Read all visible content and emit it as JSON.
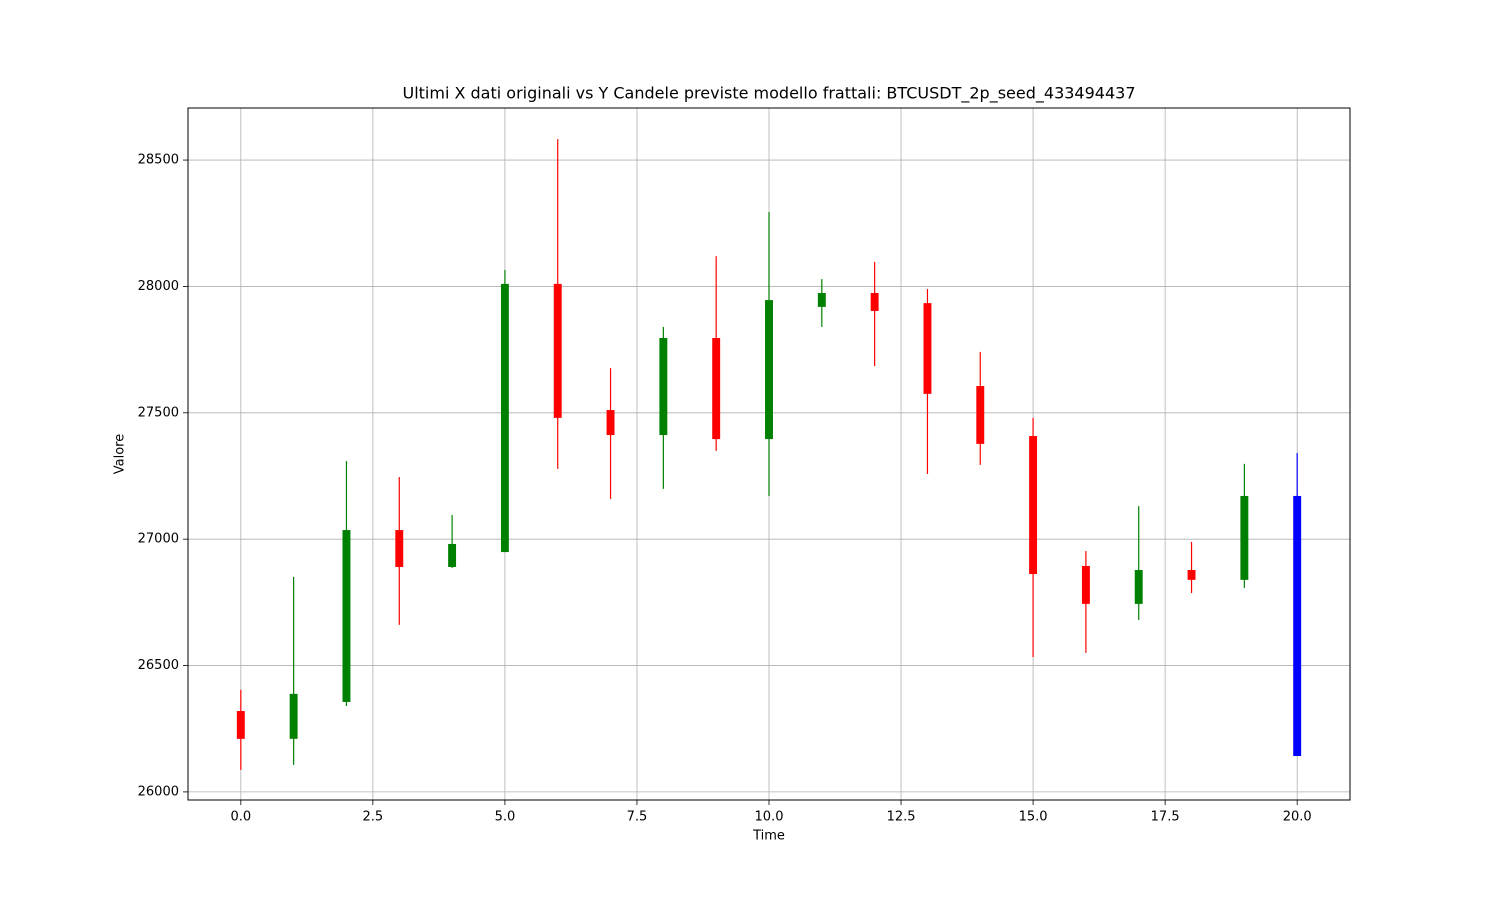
{
  "chart_data": {
    "type": "candlestick",
    "title": "Ultimi X dati originali vs Y Candele previste modello frattali: BTCUSDT_2p_seed_433494437",
    "xlabel": "Time",
    "ylabel": "Valore",
    "x": [
      0,
      1,
      2,
      3,
      4,
      5,
      6,
      7,
      8,
      9,
      10,
      11,
      12,
      13,
      14,
      15,
      16,
      17,
      18,
      19,
      20
    ],
    "open": [
      26320,
      26210,
      26356,
      27036,
      26890,
      26949,
      28010,
      27511,
      27412,
      27796,
      27396,
      27919,
      27974,
      27934,
      27606,
      27408,
      26894,
      26744,
      26878,
      26839,
      27171
    ],
    "high": [
      26404,
      26851,
      27309,
      27246,
      27096,
      28065,
      28583,
      27677,
      27840,
      28120,
      28294,
      28029,
      28097,
      27990,
      27741,
      27480,
      26953,
      27131,
      26989,
      27298,
      27341
    ],
    "low": [
      26087,
      26107,
      26340,
      26661,
      26886,
      26949,
      27278,
      27159,
      27199,
      27349,
      27171,
      27840,
      27685,
      27258,
      27294,
      26534,
      26550,
      26680,
      26787,
      26807,
      26142
    ],
    "close": [
      26210,
      26388,
      27036,
      26890,
      26981,
      28010,
      27480,
      27412,
      27796,
      27396,
      27946,
      27974,
      27903,
      27575,
      27377,
      26862,
      26744,
      26878,
      26839,
      27171,
      26142
    ],
    "colors": [
      "red",
      "green",
      "green",
      "red",
      "green",
      "green",
      "red",
      "red",
      "green",
      "red",
      "green",
      "green",
      "red",
      "red",
      "red",
      "red",
      "red",
      "green",
      "red",
      "green",
      "blue"
    ],
    "xlim": [
      -1,
      21
    ],
    "ylim": [
      25968,
      28706
    ],
    "xticks": [
      {
        "value": 0,
        "label": "0.0"
      },
      {
        "value": 2.5,
        "label": "2.5"
      },
      {
        "value": 5,
        "label": "5.0"
      },
      {
        "value": 7.5,
        "label": "7.5"
      },
      {
        "value": 10,
        "label": "10.0"
      },
      {
        "value": 12.5,
        "label": "12.5"
      },
      {
        "value": 15,
        "label": "15.0"
      },
      {
        "value": 17.5,
        "label": "17.5"
      },
      {
        "value": 20,
        "label": "20.0"
      }
    ],
    "yticks": [
      26000,
      26500,
      27000,
      27500,
      28000,
      28500
    ],
    "grid": true
  }
}
